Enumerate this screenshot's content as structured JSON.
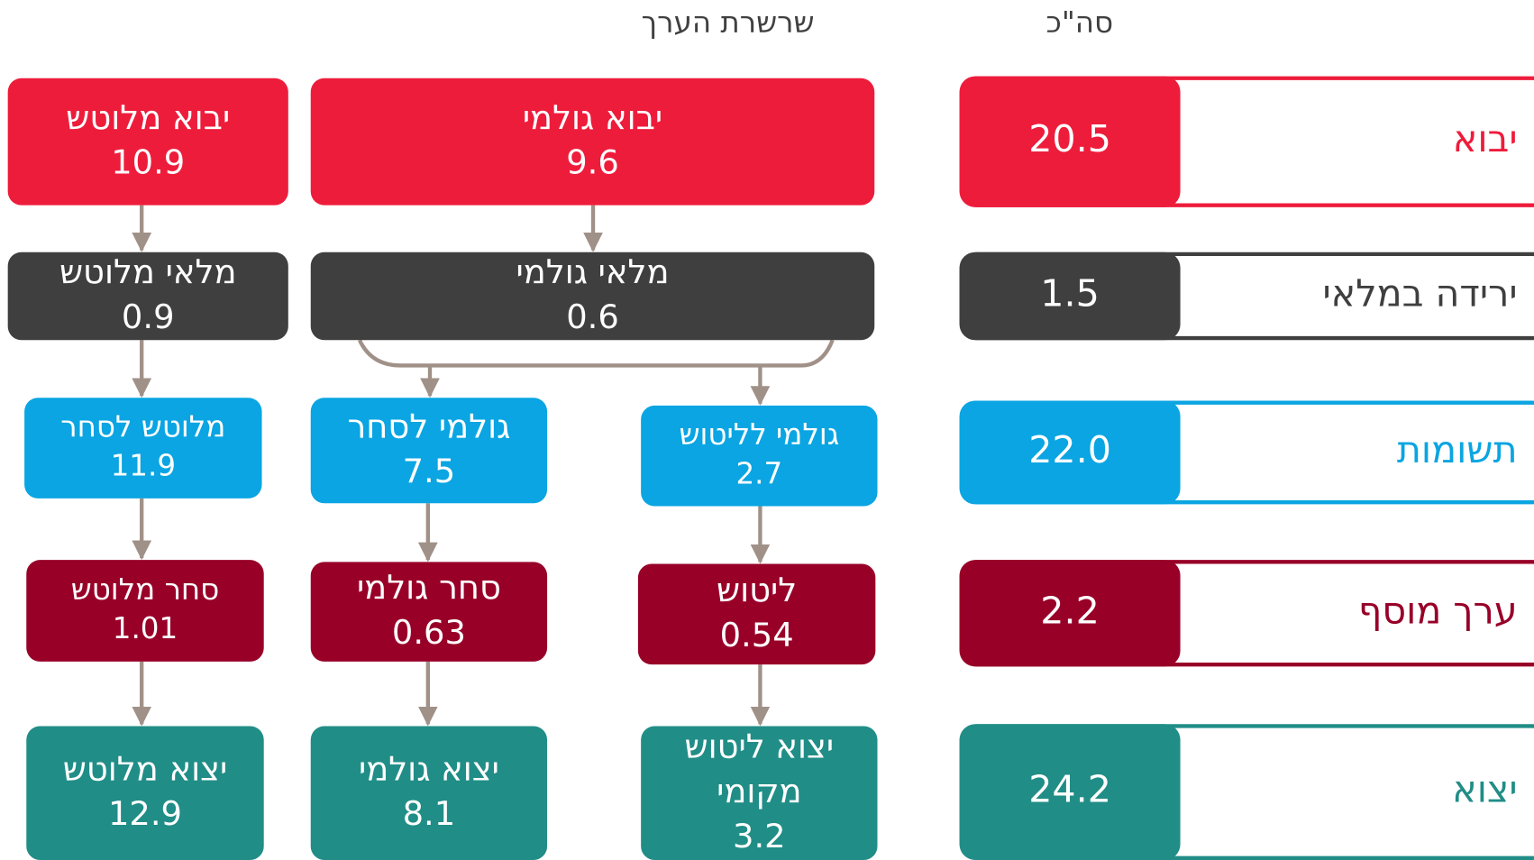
{
  "headers": {
    "chain": "שרשרת הערך",
    "total": "סה\"כ"
  },
  "nodes": [
    {
      "label": [
        "יבוא מלוטש"
      ],
      "value": "10.9"
    },
    {
      "label": [
        "מלאי מלוטש"
      ],
      "value": "0.9"
    },
    {
      "label": [
        "מלוטש לסחר"
      ],
      "value": "11.9"
    },
    {
      "label": [
        "סחר מלוטש"
      ],
      "value": "1.01"
    },
    {
      "label": [
        "יצוא מלוטש"
      ],
      "value": "12.9"
    },
    {
      "label": [
        "יבוא גולמי"
      ],
      "value": "9.6"
    },
    {
      "label": [
        "מלאי גולמי"
      ],
      "value": "0.6"
    },
    {
      "label": [
        "גולמי לסחר"
      ],
      "value": "7.5"
    },
    {
      "label": [
        "סחר גולמי"
      ],
      "value": "0.63"
    },
    {
      "label": [
        "יצוא גולמי"
      ],
      "value": "8.1"
    },
    {
      "label": [
        "גולמי לליטוש"
      ],
      "value": "2.7"
    },
    {
      "label": [
        "ליטוש"
      ],
      "value": "0.54"
    },
    {
      "label": [
        "יצוא ליטוש",
        "מקומי"
      ],
      "value": "3.2"
    }
  ],
  "totals": [
    {
      "label": "יבוא",
      "value": "20.5"
    },
    {
      "label": "ירידה במלאי",
      "value": "1.5"
    },
    {
      "label": "תשומות",
      "value": "22.0"
    },
    {
      "label": "ערך מוסף",
      "value": "2.2"
    },
    {
      "label": "יצוא",
      "value": "24.2"
    }
  ]
}
